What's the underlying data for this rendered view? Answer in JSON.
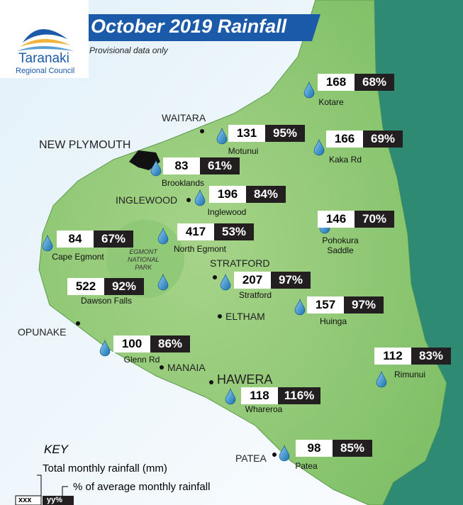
{
  "header": {
    "title": "October 2019 Rainfall",
    "subtitle": "Provisional data only",
    "logo_line1": "Taranaki",
    "logo_line2": "Regional Council"
  },
  "park": [
    "EGMONT",
    "NATIONAL",
    "PARK"
  ],
  "towns": [
    {
      "label": "WAITARA"
    },
    {
      "label": "NEW PLYMOUTH"
    },
    {
      "label": "INGLEWOOD"
    },
    {
      "label": "STRATFORD"
    },
    {
      "label": "ELTHAM"
    },
    {
      "label": "OPUNAKE"
    },
    {
      "label": "MANAIA"
    },
    {
      "label": "HAWERA"
    },
    {
      "label": "PATEA"
    }
  ],
  "stations": [
    {
      "name": "Kotare",
      "rainfall": 168,
      "percent": "68%"
    },
    {
      "name": "Motunui",
      "rainfall": 131,
      "percent": "95%"
    },
    {
      "name": "Kaka Rd",
      "rainfall": 166,
      "percent": "69%"
    },
    {
      "name": "Brooklands",
      "rainfall": 83,
      "percent": "61%"
    },
    {
      "name": "Inglewood",
      "rainfall": 196,
      "percent": "84%"
    },
    {
      "name": "Pohokura Saddle",
      "rainfall": 146,
      "percent": "70%"
    },
    {
      "name": "Cape Egmont",
      "rainfall": 84,
      "percent": "67%"
    },
    {
      "name": "North Egmont",
      "rainfall": 417,
      "percent": "53%"
    },
    {
      "name": "Stratford",
      "rainfall": 207,
      "percent": "97%"
    },
    {
      "name": "Dawson Falls",
      "rainfall": 522,
      "percent": "92%"
    },
    {
      "name": "Huinga",
      "rainfall": 157,
      "percent": "97%"
    },
    {
      "name": "Glenn Rd",
      "rainfall": 100,
      "percent": "86%"
    },
    {
      "name": "Rimunui",
      "rainfall": 112,
      "percent": "83%"
    },
    {
      "name": "Whareroa",
      "rainfall": 118,
      "percent": "116%"
    },
    {
      "name": "Patea",
      "rainfall": 98,
      "percent": "85%"
    }
  ],
  "key": {
    "title": "KEY",
    "rainfall_text": "Total monthly rainfall (mm)",
    "percent_text": "% of average monthly rainfall",
    "sample_rainfall": "xxx",
    "sample_percent": "yy%"
  }
}
